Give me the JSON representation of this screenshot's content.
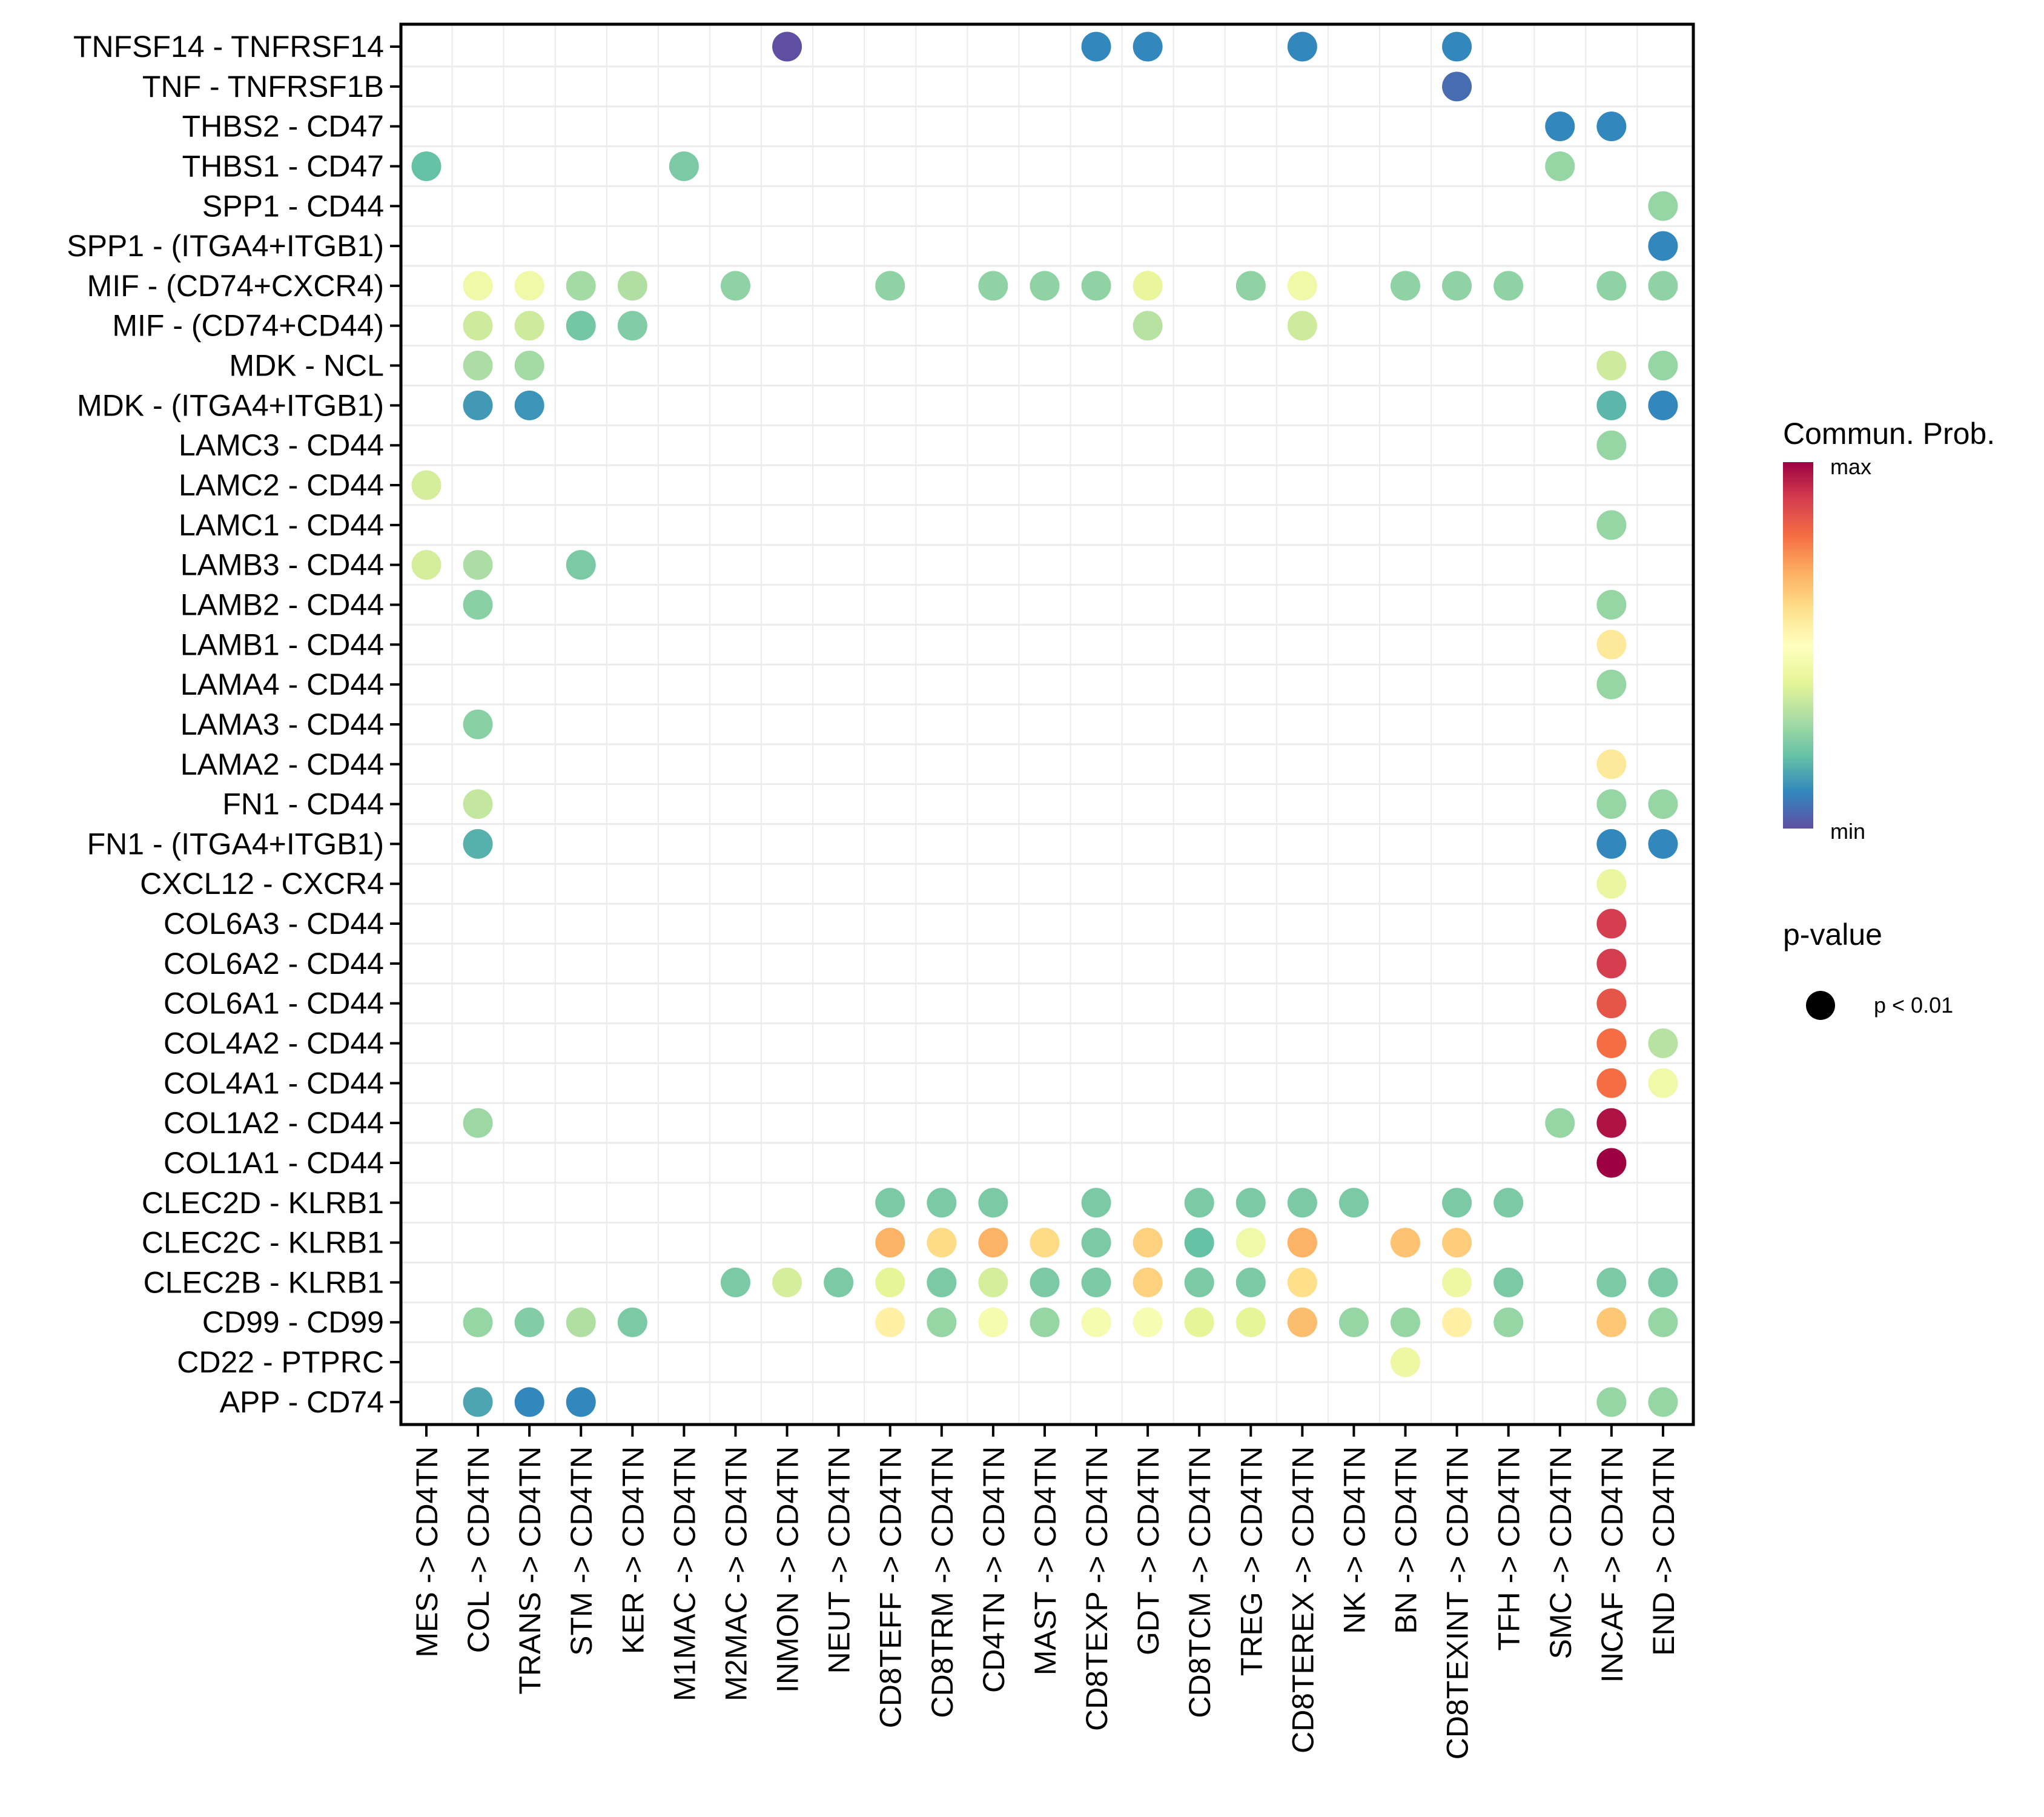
{
  "chart_data": {
    "type": "scatter",
    "subtype": "dot-heatmap",
    "title": "",
    "xlabel": "",
    "ylabel": "",
    "grid": true,
    "legend_position": "right",
    "x_categories": [
      "MES -> CD4TN",
      "COL -> CD4TN",
      "TRANS -> CD4TN",
      "STM -> CD4TN",
      "KER -> CD4TN",
      "M1MAC -> CD4TN",
      "M2MAC -> CD4TN",
      "INMON -> CD4TN",
      "NEUT -> CD4TN",
      "CD8TEFF -> CD4TN",
      "CD8TRM -> CD4TN",
      "CD4TN -> CD4TN",
      "MAST -> CD4TN",
      "CD8TEXP -> CD4TN",
      "GDT -> CD4TN",
      "CD8TCM -> CD4TN",
      "TREG -> CD4TN",
      "CD8TEREX -> CD4TN",
      "NK -> CD4TN",
      "BN -> CD4TN",
      "CD8TEXINT -> CD4TN",
      "TFH -> CD4TN",
      "SMC -> CD4TN",
      "INCAF -> CD4TN",
      "END -> CD4TN"
    ],
    "y_categories": [
      "TNFSF14 - TNFRSF14",
      "TNF - TNFRSF1B",
      "THBS2 - CD47",
      "THBS1 - CD47",
      "SPP1 - CD44",
      "SPP1 - (ITGA4+ITGB1)",
      "MIF - (CD74+CXCR4)",
      "MIF - (CD74+CD44)",
      "MDK - NCL",
      "MDK - (ITGA4+ITGB1)",
      "LAMC3 - CD44",
      "LAMC2 - CD44",
      "LAMC1 - CD44",
      "LAMB3 - CD44",
      "LAMB2 - CD44",
      "LAMB1 - CD44",
      "LAMA4 - CD44",
      "LAMA3 - CD44",
      "LAMA2 - CD44",
      "FN1 - CD44",
      "FN1 - (ITGA4+ITGB1)",
      "CXCL12 - CXCR4",
      "COL6A3 - CD44",
      "COL6A2 - CD44",
      "COL6A1 - CD44",
      "COL4A2 - CD44",
      "COL4A1 - CD44",
      "COL1A2 - CD44",
      "COL1A1 - CD44",
      "CLEC2D - KLRB1",
      "CLEC2C - KLRB1",
      "CLEC2B - KLRB1",
      "CD99 - CD99",
      "CD22 - PTPRC",
      "APP - CD74"
    ],
    "color_scale": {
      "title": "Commun. Prob.",
      "min_label": "min",
      "max_label": "max",
      "palette": [
        "#5E4FA2",
        "#3288BD",
        "#66C2A5",
        "#ABDDA4",
        "#E6F598",
        "#FFFFBF",
        "#FEE08B",
        "#FDAE61",
        "#F46D43",
        "#D53E4F",
        "#9E0142"
      ]
    },
    "size_legend": {
      "title": "p-value",
      "entries": [
        "p < 0.01"
      ]
    },
    "value_units": "relative communication probability (0 = min, 1 = max)",
    "points": [
      {
        "y": "TNFSF14 - TNFRSF14",
        "x": "INMON -> CD4TN",
        "value": 0.0,
        "pvalue": "p < 0.01"
      },
      {
        "y": "TNFSF14 - TNFRSF14",
        "x": "CD8TEXP -> CD4TN",
        "value": 0.1,
        "pvalue": "p < 0.01"
      },
      {
        "y": "TNFSF14 - TNFRSF14",
        "x": "GDT -> CD4TN",
        "value": 0.1,
        "pvalue": "p < 0.01"
      },
      {
        "y": "TNFSF14 - TNFRSF14",
        "x": "CD8TEREX -> CD4TN",
        "value": 0.1,
        "pvalue": "p < 0.01"
      },
      {
        "y": "TNFSF14 - TNFRSF14",
        "x": "CD8TEXINT -> CD4TN",
        "value": 0.1,
        "pvalue": "p < 0.01"
      },
      {
        "y": "TNF - TNFRSF1B",
        "x": "CD8TEXINT -> CD4TN",
        "value": 0.05,
        "pvalue": "p < 0.01"
      },
      {
        "y": "THBS2 - CD47",
        "x": "SMC -> CD4TN",
        "value": 0.1,
        "pvalue": "p < 0.01"
      },
      {
        "y": "THBS2 - CD47",
        "x": "INCAF -> CD4TN",
        "value": 0.1,
        "pvalue": "p < 0.01"
      },
      {
        "y": "THBS1 - CD47",
        "x": "MES -> CD4TN",
        "value": 0.2,
        "pvalue": "p < 0.01"
      },
      {
        "y": "THBS1 - CD47",
        "x": "M1MAC -> CD4TN",
        "value": 0.23,
        "pvalue": "p < 0.01"
      },
      {
        "y": "THBS1 - CD47",
        "x": "SMC -> CD4TN",
        "value": 0.27,
        "pvalue": "p < 0.01"
      },
      {
        "y": "SPP1 - CD44",
        "x": "END -> CD4TN",
        "value": 0.27,
        "pvalue": "p < 0.01"
      },
      {
        "y": "SPP1 - (ITGA4+ITGB1)",
        "x": "END -> CD4TN",
        "value": 0.1,
        "pvalue": "p < 0.01"
      },
      {
        "y": "MIF - (CD74+CXCR4)",
        "x": "COL -> CD4TN",
        "value": 0.44,
        "pvalue": "p < 0.01"
      },
      {
        "y": "MIF - (CD74+CXCR4)",
        "x": "TRANS -> CD4TN",
        "value": 0.44,
        "pvalue": "p < 0.01"
      },
      {
        "y": "MIF - (CD74+CXCR4)",
        "x": "STM -> CD4TN",
        "value": 0.29,
        "pvalue": "p < 0.01"
      },
      {
        "y": "MIF - (CD74+CXCR4)",
        "x": "KER -> CD4TN",
        "value": 0.31,
        "pvalue": "p < 0.01"
      },
      {
        "y": "MIF - (CD74+CXCR4)",
        "x": "M2MAC -> CD4TN",
        "value": 0.26,
        "pvalue": "p < 0.01"
      },
      {
        "y": "MIF - (CD74+CXCR4)",
        "x": "CD8TEFF -> CD4TN",
        "value": 0.26,
        "pvalue": "p < 0.01"
      },
      {
        "y": "MIF - (CD74+CXCR4)",
        "x": "CD4TN -> CD4TN",
        "value": 0.26,
        "pvalue": "p < 0.01"
      },
      {
        "y": "MIF - (CD74+CXCR4)",
        "x": "MAST -> CD4TN",
        "value": 0.26,
        "pvalue": "p < 0.01"
      },
      {
        "y": "MIF - (CD74+CXCR4)",
        "x": "CD8TEXP -> CD4TN",
        "value": 0.26,
        "pvalue": "p < 0.01"
      },
      {
        "y": "MIF - (CD74+CXCR4)",
        "x": "GDT -> CD4TN",
        "value": 0.41,
        "pvalue": "p < 0.01"
      },
      {
        "y": "MIF - (CD74+CXCR4)",
        "x": "TREG -> CD4TN",
        "value": 0.26,
        "pvalue": "p < 0.01"
      },
      {
        "y": "MIF - (CD74+CXCR4)",
        "x": "CD8TEREX -> CD4TN",
        "value": 0.44,
        "pvalue": "p < 0.01"
      },
      {
        "y": "MIF - (CD74+CXCR4)",
        "x": "BN -> CD4TN",
        "value": 0.26,
        "pvalue": "p < 0.01"
      },
      {
        "y": "MIF - (CD74+CXCR4)",
        "x": "CD8TEXINT -> CD4TN",
        "value": 0.26,
        "pvalue": "p < 0.01"
      },
      {
        "y": "MIF - (CD74+CXCR4)",
        "x": "TFH -> CD4TN",
        "value": 0.26,
        "pvalue": "p < 0.01"
      },
      {
        "y": "MIF - (CD74+CXCR4)",
        "x": "INCAF -> CD4TN",
        "value": 0.26,
        "pvalue": "p < 0.01"
      },
      {
        "y": "MIF - (CD74+CXCR4)",
        "x": "END -> CD4TN",
        "value": 0.26,
        "pvalue": "p < 0.01"
      },
      {
        "y": "MIF - (CD74+CD44)",
        "x": "COL -> CD4TN",
        "value": 0.36,
        "pvalue": "p < 0.01"
      },
      {
        "y": "MIF - (CD74+CD44)",
        "x": "TRANS -> CD4TN",
        "value": 0.36,
        "pvalue": "p < 0.01"
      },
      {
        "y": "MIF - (CD74+CD44)",
        "x": "STM -> CD4TN",
        "value": 0.22,
        "pvalue": "p < 0.01"
      },
      {
        "y": "MIF - (CD74+CD44)",
        "x": "KER -> CD4TN",
        "value": 0.24,
        "pvalue": "p < 0.01"
      },
      {
        "y": "MIF - (CD74+CD44)",
        "x": "GDT -> CD4TN",
        "value": 0.32,
        "pvalue": "p < 0.01"
      },
      {
        "y": "MIF - (CD74+CD44)",
        "x": "CD8TEREX -> CD4TN",
        "value": 0.36,
        "pvalue": "p < 0.01"
      },
      {
        "y": "MDK - NCL",
        "x": "COL -> CD4TN",
        "value": 0.3,
        "pvalue": "p < 0.01"
      },
      {
        "y": "MDK - NCL",
        "x": "TRANS -> CD4TN",
        "value": 0.29,
        "pvalue": "p < 0.01"
      },
      {
        "y": "MDK - NCL",
        "x": "INCAF -> CD4TN",
        "value": 0.36,
        "pvalue": "p < 0.01"
      },
      {
        "y": "MDK - NCL",
        "x": "END -> CD4TN",
        "value": 0.27,
        "pvalue": "p < 0.01"
      },
      {
        "y": "MDK - (ITGA4+ITGB1)",
        "x": "COL -> CD4TN",
        "value": 0.13,
        "pvalue": "p < 0.01"
      },
      {
        "y": "MDK - (ITGA4+ITGB1)",
        "x": "TRANS -> CD4TN",
        "value": 0.12,
        "pvalue": "p < 0.01"
      },
      {
        "y": "MDK - (ITGA4+ITGB1)",
        "x": "INCAF -> CD4TN",
        "value": 0.18,
        "pvalue": "p < 0.01"
      },
      {
        "y": "MDK - (ITGA4+ITGB1)",
        "x": "END -> CD4TN",
        "value": 0.1,
        "pvalue": "p < 0.01"
      },
      {
        "y": "LAMC3 - CD44",
        "x": "INCAF -> CD4TN",
        "value": 0.27,
        "pvalue": "p < 0.01"
      },
      {
        "y": "LAMC2 - CD44",
        "x": "MES -> CD4TN",
        "value": 0.37,
        "pvalue": "p < 0.01"
      },
      {
        "y": "LAMC1 - CD44",
        "x": "INCAF -> CD4TN",
        "value": 0.27,
        "pvalue": "p < 0.01"
      },
      {
        "y": "LAMB3 - CD44",
        "x": "MES -> CD4TN",
        "value": 0.37,
        "pvalue": "p < 0.01"
      },
      {
        "y": "LAMB3 - CD44",
        "x": "COL -> CD4TN",
        "value": 0.3,
        "pvalue": "p < 0.01"
      },
      {
        "y": "LAMB3 - CD44",
        "x": "STM -> CD4TN",
        "value": 0.23,
        "pvalue": "p < 0.01"
      },
      {
        "y": "LAMB2 - CD44",
        "x": "COL -> CD4TN",
        "value": 0.25,
        "pvalue": "p < 0.01"
      },
      {
        "y": "LAMB2 - CD44",
        "x": "INCAF -> CD4TN",
        "value": 0.27,
        "pvalue": "p < 0.01"
      },
      {
        "y": "LAMB1 - CD44",
        "x": "INCAF -> CD4TN",
        "value": 0.57,
        "pvalue": "p < 0.01"
      },
      {
        "y": "LAMA4 - CD44",
        "x": "INCAF -> CD4TN",
        "value": 0.27,
        "pvalue": "p < 0.01"
      },
      {
        "y": "LAMA3 - CD44",
        "x": "COL -> CD4TN",
        "value": 0.25,
        "pvalue": "p < 0.01"
      },
      {
        "y": "LAMA2 - CD44",
        "x": "INCAF -> CD4TN",
        "value": 0.57,
        "pvalue": "p < 0.01"
      },
      {
        "y": "FN1 - CD44",
        "x": "COL -> CD4TN",
        "value": 0.34,
        "pvalue": "p < 0.01"
      },
      {
        "y": "FN1 - CD44",
        "x": "INCAF -> CD4TN",
        "value": 0.27,
        "pvalue": "p < 0.01"
      },
      {
        "y": "FN1 - CD44",
        "x": "END -> CD4TN",
        "value": 0.27,
        "pvalue": "p < 0.01"
      },
      {
        "y": "FN1 - (ITGA4+ITGB1)",
        "x": "COL -> CD4TN",
        "value": 0.17,
        "pvalue": "p < 0.01"
      },
      {
        "y": "FN1 - (ITGA4+ITGB1)",
        "x": "INCAF -> CD4TN",
        "value": 0.1,
        "pvalue": "p < 0.01"
      },
      {
        "y": "FN1 - (ITGA4+ITGB1)",
        "x": "END -> CD4TN",
        "value": 0.1,
        "pvalue": "p < 0.01"
      },
      {
        "y": "CXCL12 - CXCR4",
        "x": "INCAF -> CD4TN",
        "value": 0.42,
        "pvalue": "p < 0.01"
      },
      {
        "y": "COL6A3 - CD44",
        "x": "INCAF -> CD4TN",
        "value": 0.9,
        "pvalue": "p < 0.01"
      },
      {
        "y": "COL6A2 - CD44",
        "x": "INCAF -> CD4TN",
        "value": 0.9,
        "pvalue": "p < 0.01"
      },
      {
        "y": "COL6A1 - CD44",
        "x": "INCAF -> CD4TN",
        "value": 0.85,
        "pvalue": "p < 0.01"
      },
      {
        "y": "COL4A2 - CD44",
        "x": "INCAF -> CD4TN",
        "value": 0.8,
        "pvalue": "p < 0.01"
      },
      {
        "y": "COL4A2 - CD44",
        "x": "END -> CD4TN",
        "value": 0.32,
        "pvalue": "p < 0.01"
      },
      {
        "y": "COL4A1 - CD44",
        "x": "INCAF -> CD4TN",
        "value": 0.8,
        "pvalue": "p < 0.01"
      },
      {
        "y": "COL4A1 - CD44",
        "x": "END -> CD4TN",
        "value": 0.44,
        "pvalue": "p < 0.01"
      },
      {
        "y": "COL1A2 - CD44",
        "x": "COL -> CD4TN",
        "value": 0.28,
        "pvalue": "p < 0.01"
      },
      {
        "y": "COL1A2 - CD44",
        "x": "SMC -> CD4TN",
        "value": 0.27,
        "pvalue": "p < 0.01"
      },
      {
        "y": "COL1A2 - CD44",
        "x": "INCAF -> CD4TN",
        "value": 0.97,
        "pvalue": "p < 0.01"
      },
      {
        "y": "COL1A1 - CD44",
        "x": "INCAF -> CD4TN",
        "value": 1.0,
        "pvalue": "p < 0.01"
      },
      {
        "y": "CLEC2D - KLRB1",
        "x": "CD8TEFF -> CD4TN",
        "value": 0.23,
        "pvalue": "p < 0.01"
      },
      {
        "y": "CLEC2D - KLRB1",
        "x": "CD8TRM -> CD4TN",
        "value": 0.23,
        "pvalue": "p < 0.01"
      },
      {
        "y": "CLEC2D - KLRB1",
        "x": "CD4TN -> CD4TN",
        "value": 0.23,
        "pvalue": "p < 0.01"
      },
      {
        "y": "CLEC2D - KLRB1",
        "x": "CD8TEXP -> CD4TN",
        "value": 0.23,
        "pvalue": "p < 0.01"
      },
      {
        "y": "CLEC2D - KLRB1",
        "x": "CD8TCM -> CD4TN",
        "value": 0.23,
        "pvalue": "p < 0.01"
      },
      {
        "y": "CLEC2D - KLRB1",
        "x": "TREG -> CD4TN",
        "value": 0.23,
        "pvalue": "p < 0.01"
      },
      {
        "y": "CLEC2D - KLRB1",
        "x": "CD8TEREX -> CD4TN",
        "value": 0.23,
        "pvalue": "p < 0.01"
      },
      {
        "y": "CLEC2D - KLRB1",
        "x": "NK -> CD4TN",
        "value": 0.23,
        "pvalue": "p < 0.01"
      },
      {
        "y": "CLEC2D - KLRB1",
        "x": "CD8TEXINT -> CD4TN",
        "value": 0.23,
        "pvalue": "p < 0.01"
      },
      {
        "y": "CLEC2D - KLRB1",
        "x": "TFH -> CD4TN",
        "value": 0.23,
        "pvalue": "p < 0.01"
      },
      {
        "y": "CLEC2C - KLRB1",
        "x": "CD8TEFF -> CD4TN",
        "value": 0.69,
        "pvalue": "p < 0.01"
      },
      {
        "y": "CLEC2C - KLRB1",
        "x": "CD8TRM -> CD4TN",
        "value": 0.61,
        "pvalue": "p < 0.01"
      },
      {
        "y": "CLEC2C - KLRB1",
        "x": "CD4TN -> CD4TN",
        "value": 0.69,
        "pvalue": "p < 0.01"
      },
      {
        "y": "CLEC2C - KLRB1",
        "x": "MAST -> CD4TN",
        "value": 0.61,
        "pvalue": "p < 0.01"
      },
      {
        "y": "CLEC2C - KLRB1",
        "x": "CD8TEXP -> CD4TN",
        "value": 0.23,
        "pvalue": "p < 0.01"
      },
      {
        "y": "CLEC2C - KLRB1",
        "x": "GDT -> CD4TN",
        "value": 0.63,
        "pvalue": "p < 0.01"
      },
      {
        "y": "CLEC2C - KLRB1",
        "x": "CD8TCM -> CD4TN",
        "value": 0.2,
        "pvalue": "p < 0.01"
      },
      {
        "y": "CLEC2C - KLRB1",
        "x": "TREG -> CD4TN",
        "value": 0.44,
        "pvalue": "p < 0.01"
      },
      {
        "y": "CLEC2C - KLRB1",
        "x": "CD8TEREX -> CD4TN",
        "value": 0.69,
        "pvalue": "p < 0.01"
      },
      {
        "y": "CLEC2C - KLRB1",
        "x": "BN -> CD4TN",
        "value": 0.66,
        "pvalue": "p < 0.01"
      },
      {
        "y": "CLEC2C - KLRB1",
        "x": "CD8TEXINT -> CD4TN",
        "value": 0.64,
        "pvalue": "p < 0.01"
      },
      {
        "y": "CLEC2B - KLRB1",
        "x": "M2MAC -> CD4TN",
        "value": 0.23,
        "pvalue": "p < 0.01"
      },
      {
        "y": "CLEC2B - KLRB1",
        "x": "INMON -> CD4TN",
        "value": 0.37,
        "pvalue": "p < 0.01"
      },
      {
        "y": "CLEC2B - KLRB1",
        "x": "NEUT -> CD4TN",
        "value": 0.23,
        "pvalue": "p < 0.01"
      },
      {
        "y": "CLEC2B - KLRB1",
        "x": "CD8TEFF -> CD4TN",
        "value": 0.4,
        "pvalue": "p < 0.01"
      },
      {
        "y": "CLEC2B - KLRB1",
        "x": "CD8TRM -> CD4TN",
        "value": 0.23,
        "pvalue": "p < 0.01"
      },
      {
        "y": "CLEC2B - KLRB1",
        "x": "CD4TN -> CD4TN",
        "value": 0.37,
        "pvalue": "p < 0.01"
      },
      {
        "y": "CLEC2B - KLRB1",
        "x": "MAST -> CD4TN",
        "value": 0.23,
        "pvalue": "p < 0.01"
      },
      {
        "y": "CLEC2B - KLRB1",
        "x": "CD8TEXP -> CD4TN",
        "value": 0.23,
        "pvalue": "p < 0.01"
      },
      {
        "y": "CLEC2B - KLRB1",
        "x": "GDT -> CD4TN",
        "value": 0.63,
        "pvalue": "p < 0.01"
      },
      {
        "y": "CLEC2B - KLRB1",
        "x": "CD8TCM -> CD4TN",
        "value": 0.23,
        "pvalue": "p < 0.01"
      },
      {
        "y": "CLEC2B - KLRB1",
        "x": "TREG -> CD4TN",
        "value": 0.23,
        "pvalue": "p < 0.01"
      },
      {
        "y": "CLEC2B - KLRB1",
        "x": "CD8TEREX -> CD4TN",
        "value": 0.6,
        "pvalue": "p < 0.01"
      },
      {
        "y": "CLEC2B - KLRB1",
        "x": "CD8TEXINT -> CD4TN",
        "value": 0.43,
        "pvalue": "p < 0.01"
      },
      {
        "y": "CLEC2B - KLRB1",
        "x": "TFH -> CD4TN",
        "value": 0.23,
        "pvalue": "p < 0.01"
      },
      {
        "y": "CLEC2B - KLRB1",
        "x": "INCAF -> CD4TN",
        "value": 0.23,
        "pvalue": "p < 0.01"
      },
      {
        "y": "CLEC2B - KLRB1",
        "x": "END -> CD4TN",
        "value": 0.23,
        "pvalue": "p < 0.01"
      },
      {
        "y": "CD99 - CD99",
        "x": "COL -> CD4TN",
        "value": 0.27,
        "pvalue": "p < 0.01"
      },
      {
        "y": "CD99 - CD99",
        "x": "TRANS -> CD4TN",
        "value": 0.24,
        "pvalue": "p < 0.01"
      },
      {
        "y": "CD99 - CD99",
        "x": "STM -> CD4TN",
        "value": 0.31,
        "pvalue": "p < 0.01"
      },
      {
        "y": "CD99 - CD99",
        "x": "KER -> CD4TN",
        "value": 0.23,
        "pvalue": "p < 0.01"
      },
      {
        "y": "CD99 - CD99",
        "x": "CD8TEFF -> CD4TN",
        "value": 0.55,
        "pvalue": "p < 0.01"
      },
      {
        "y": "CD99 - CD99",
        "x": "CD8TRM -> CD4TN",
        "value": 0.27,
        "pvalue": "p < 0.01"
      },
      {
        "y": "CD99 - CD99",
        "x": "CD4TN -> CD4TN",
        "value": 0.46,
        "pvalue": "p < 0.01"
      },
      {
        "y": "CD99 - CD99",
        "x": "MAST -> CD4TN",
        "value": 0.27,
        "pvalue": "p < 0.01"
      },
      {
        "y": "CD99 - CD99",
        "x": "CD8TEXP -> CD4TN",
        "value": 0.46,
        "pvalue": "p < 0.01"
      },
      {
        "y": "CD99 - CD99",
        "x": "GDT -> CD4TN",
        "value": 0.47,
        "pvalue": "p < 0.01"
      },
      {
        "y": "CD99 - CD99",
        "x": "CD8TCM -> CD4TN",
        "value": 0.4,
        "pvalue": "p < 0.01"
      },
      {
        "y": "CD99 - CD99",
        "x": "TREG -> CD4TN",
        "value": 0.4,
        "pvalue": "p < 0.01"
      },
      {
        "y": "CD99 - CD99",
        "x": "CD8TEREX -> CD4TN",
        "value": 0.67,
        "pvalue": "p < 0.01"
      },
      {
        "y": "CD99 - CD99",
        "x": "NK -> CD4TN",
        "value": 0.27,
        "pvalue": "p < 0.01"
      },
      {
        "y": "CD99 - CD99",
        "x": "BN -> CD4TN",
        "value": 0.27,
        "pvalue": "p < 0.01"
      },
      {
        "y": "CD99 - CD99",
        "x": "CD8TEXINT -> CD4TN",
        "value": 0.55,
        "pvalue": "p < 0.01"
      },
      {
        "y": "CD99 - CD99",
        "x": "TFH -> CD4TN",
        "value": 0.27,
        "pvalue": "p < 0.01"
      },
      {
        "y": "CD99 - CD99",
        "x": "INCAF -> CD4TN",
        "value": 0.65,
        "pvalue": "p < 0.01"
      },
      {
        "y": "CD99 - CD99",
        "x": "END -> CD4TN",
        "value": 0.27,
        "pvalue": "p < 0.01"
      },
      {
        "y": "CD22 - PTPRC",
        "x": "BN -> CD4TN",
        "value": 0.43,
        "pvalue": "p < 0.01"
      },
      {
        "y": "APP - CD74",
        "x": "COL -> CD4TN",
        "value": 0.15,
        "pvalue": "p < 0.01"
      },
      {
        "y": "APP - CD74",
        "x": "TRANS -> CD4TN",
        "value": 0.1,
        "pvalue": "p < 0.01"
      },
      {
        "y": "APP - CD74",
        "x": "STM -> CD4TN",
        "value": 0.1,
        "pvalue": "p < 0.01"
      },
      {
        "y": "APP - CD74",
        "x": "INCAF -> CD4TN",
        "value": 0.27,
        "pvalue": "p < 0.01"
      },
      {
        "y": "APP - CD74",
        "x": "END -> CD4TN",
        "value": 0.27,
        "pvalue": "p < 0.01"
      }
    ]
  }
}
